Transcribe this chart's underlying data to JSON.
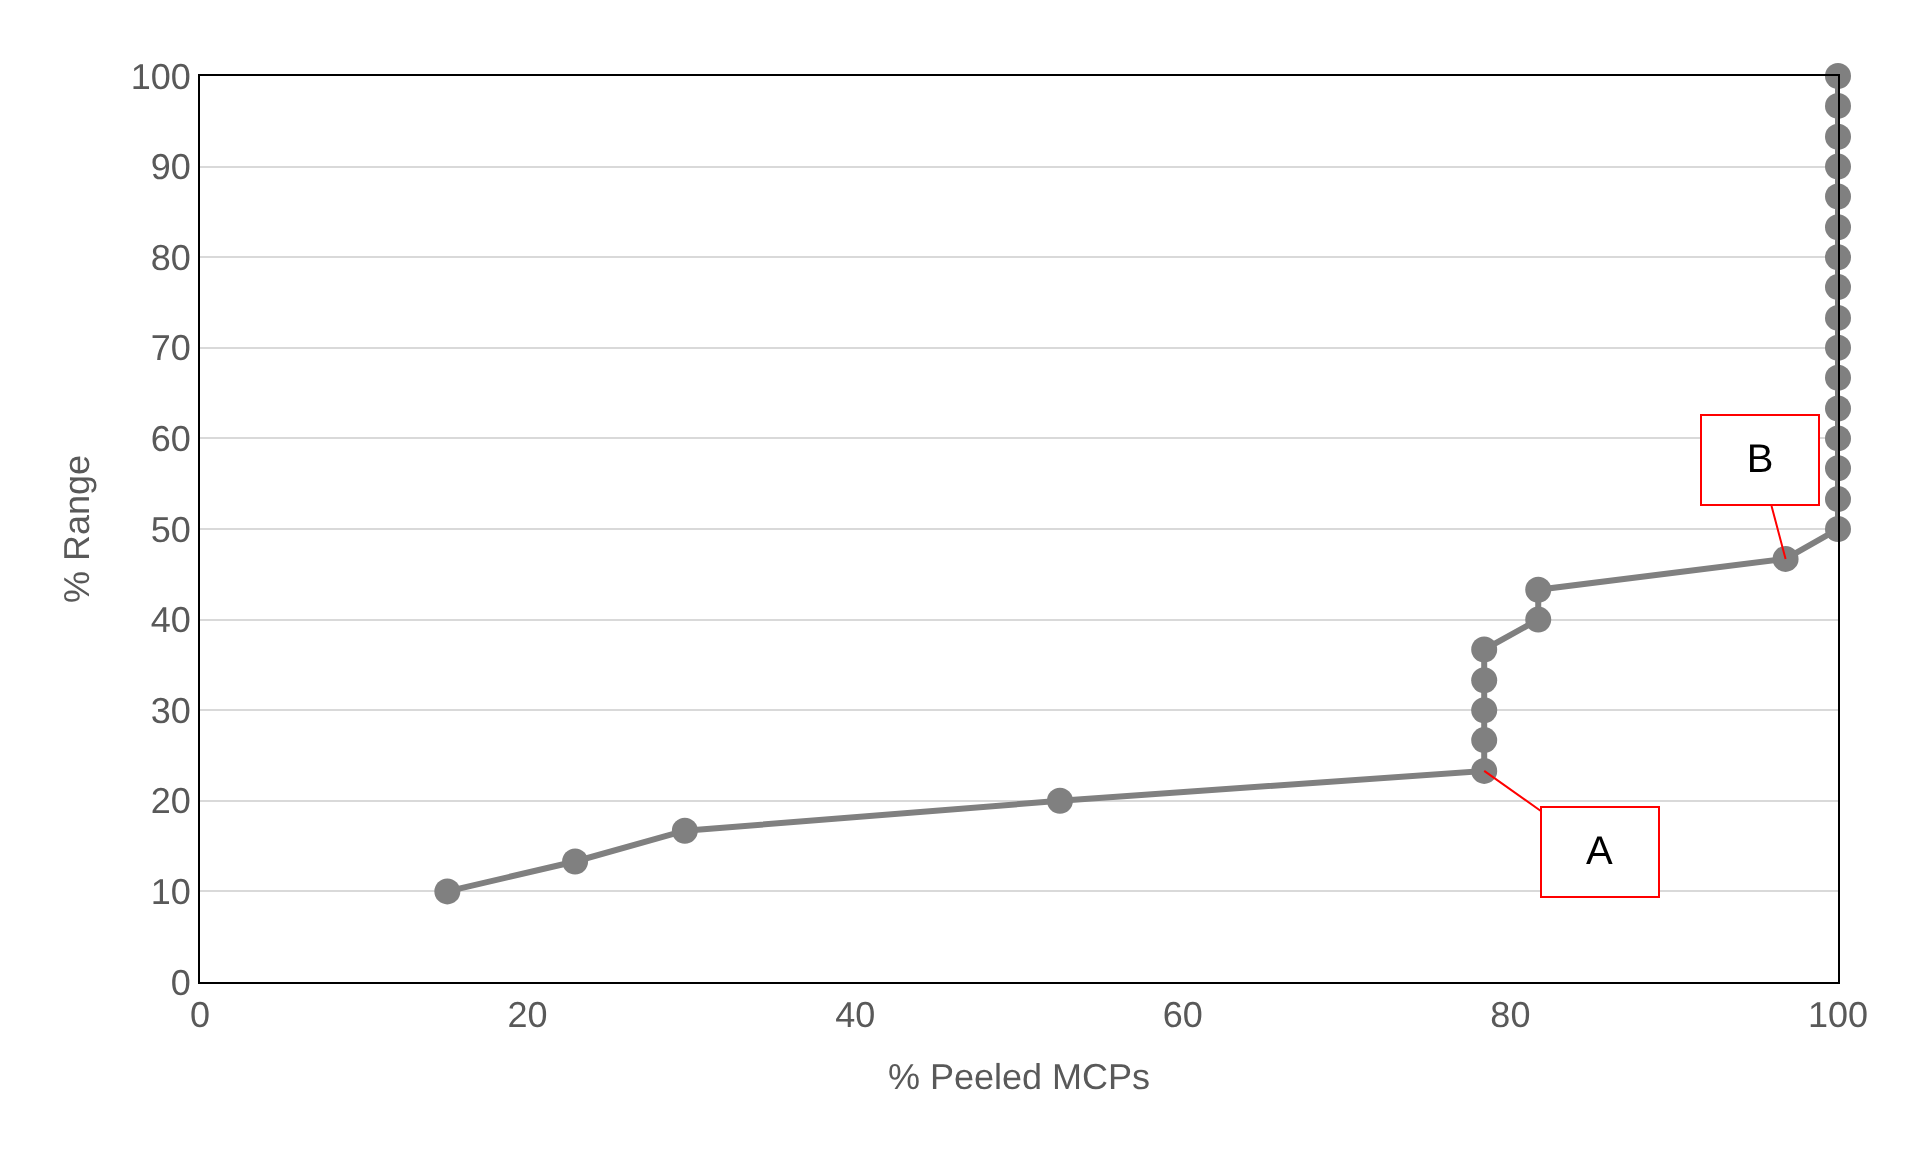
{
  "chart_data": {
    "type": "line",
    "xlabel": "% Peeled MCPs",
    "ylabel": "% Range",
    "x": [
      15.1,
      22.9,
      29.6,
      52.5,
      78.4,
      78.4,
      78.4,
      78.4,
      78.4,
      81.7,
      81.7,
      96.8,
      100,
      100,
      100,
      100,
      100,
      100,
      100,
      100,
      100,
      100,
      100,
      100,
      100,
      100,
      100,
      100
    ],
    "series": [
      {
        "color": "#808080",
        "values": [
          10,
          13.3,
          16.7,
          20,
          23.3,
          26.7,
          30,
          33.3,
          36.7,
          40,
          43.3,
          46.7,
          50,
          53.3,
          56.7,
          60,
          63.3,
          66.7,
          70,
          73.3,
          76.7,
          80,
          83.3,
          86.7,
          90,
          93.3,
          96.7,
          100
        ]
      }
    ],
    "xlim": [
      0,
      100
    ],
    "xticks": [
      0,
      20,
      40,
      60,
      80,
      100
    ],
    "ylim": [
      0,
      100
    ],
    "yticks": [
      0,
      10,
      20,
      30,
      40,
      50,
      60,
      70,
      80,
      90,
      100
    ],
    "grid": "y",
    "marker": "circle",
    "line_style": "solid",
    "annotations": [
      {
        "text": "A",
        "x": 78.4,
        "y": 23.3
      },
      {
        "text": "B",
        "x": 96.8,
        "y": 46.7
      }
    ]
  }
}
